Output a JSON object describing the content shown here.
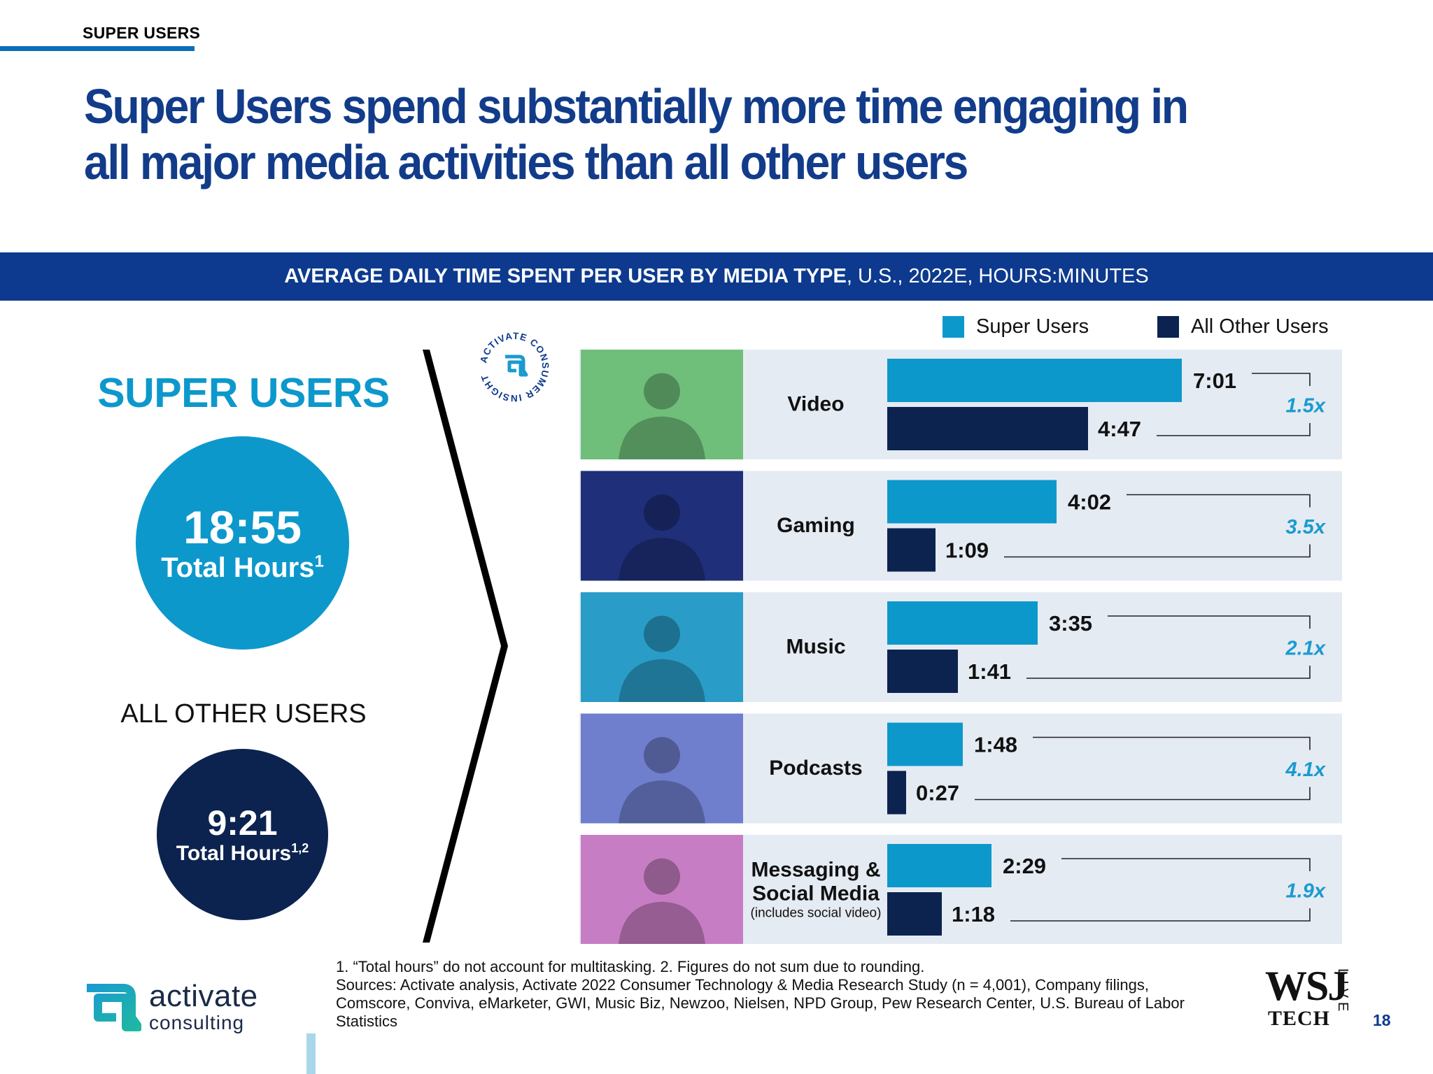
{
  "section_tag": "SUPER USERS",
  "title": "Super Users spend substantially more time engaging in all major media activities than all other users",
  "banner": {
    "bold": "AVERAGE DAILY TIME SPENT PER USER BY MEDIA TYPE",
    "rest": ", U.S., 2022E, HOURS:MINUTES"
  },
  "legend": {
    "super": "Super Users",
    "other": "All Other Users"
  },
  "left_panel": {
    "super_heading": "SUPER USERS",
    "super_total": "18:55",
    "super_total_label": "Total Hours",
    "super_total_sup": "1",
    "other_heading": "ALL OTHER USERS",
    "other_total": "9:21",
    "other_total_label": "Total Hours",
    "other_total_sup": "1,2"
  },
  "seal_text": "ACTIVATE CONSUMER INSIGHT",
  "chart_data": {
    "type": "bar",
    "orientation": "horizontal",
    "title": "AVERAGE DAILY TIME SPENT PER USER BY MEDIA TYPE, U.S., 2022E, HOURS:MINUTES",
    "legend_position": "top-right",
    "units": "minutes",
    "categories": [
      "Video",
      "Gaming",
      "Music",
      "Podcasts",
      "Messaging & Social Media"
    ],
    "category_lines": [
      [
        "Video"
      ],
      [
        "Gaming"
      ],
      [
        "Music"
      ],
      [
        "Podcasts"
      ],
      [
        "Messaging &",
        "Social Media"
      ]
    ],
    "category_notes": [
      "",
      "",
      "",
      "",
      "(includes social video)"
    ],
    "series": [
      {
        "name": "Super Users",
        "color": "#0d98cc",
        "values": [
          421,
          242,
          215,
          108,
          149
        ],
        "labels": [
          "7:01",
          "4:02",
          "3:35",
          "1:48",
          "2:29"
        ]
      },
      {
        "name": "All Other Users",
        "color": "#0c2350",
        "values": [
          287,
          69,
          101,
          27,
          78
        ],
        "labels": [
          "4:47",
          "1:09",
          "1:41",
          "0:27",
          "1:18"
        ]
      }
    ],
    "multipliers": [
      "1.5x",
      "3.5x",
      "2.1x",
      "4.1x",
      "1.9x"
    ],
    "photo_tints": [
      "#6fbf7a",
      "#1f2f7a",
      "#2a9cc8",
      "#6f7fce",
      "#c77dc3"
    ]
  },
  "footnotes": {
    "line1": "1. “Total hours” do not account for multitasking.  2. Figures do not sum due to rounding.",
    "sources": "Sources: Activate analysis, Activate 2022 Consumer Technology & Media Research Study (n = 4,001), Company filings, Comscore, Conviva, eMarketer, GWI, Music Biz, Newzoo, Nielsen, NPD Group, Pew Research Center, U.S. Bureau of Labor Statistics"
  },
  "brand": {
    "name": "activate",
    "sub": "consulting"
  },
  "partner": {
    "wsj": "WSJ",
    "tech": "TECH",
    "live": "LIVE"
  },
  "page_number": "18"
}
